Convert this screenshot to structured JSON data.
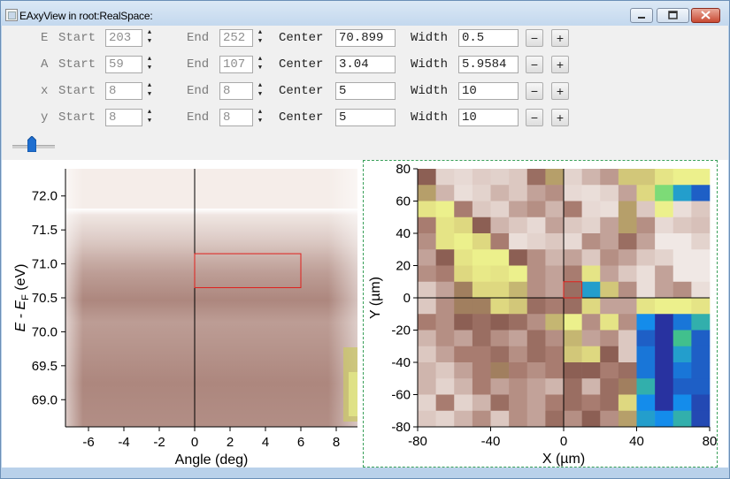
{
  "window": {
    "title": "EAxyView in root:RealSpace:",
    "buttons": [
      "minimize",
      "maximize",
      "close"
    ]
  },
  "controls": {
    "rows": [
      {
        "axis": "E",
        "start_label": "Start",
        "start": "203",
        "end_label": "End",
        "end": "252",
        "center_label": "Center",
        "center": "70.899",
        "width_label": "Width",
        "width": "0.5",
        "minus": "−",
        "plus": "+"
      },
      {
        "axis": "A",
        "start_label": "Start",
        "start": "59",
        "end_label": "End",
        "end": "107",
        "center_label": "Center",
        "center": "3.04",
        "width_label": "Width",
        "width": "5.9584",
        "minus": "−",
        "plus": "+"
      },
      {
        "axis": "x",
        "start_label": "Start",
        "start": "8",
        "end_label": "End",
        "end": "8",
        "center_label": "Center",
        "center": "5",
        "width_label": "Width",
        "width": "10",
        "minus": "−",
        "plus": "+"
      },
      {
        "axis": "y",
        "start_label": "Start",
        "start": "8",
        "end_label": "End",
        "end": "8",
        "center_label": "Center",
        "center": "5",
        "width_label": "Width",
        "width": "10",
        "minus": "−",
        "plus": "+"
      }
    ],
    "slider_value": 0.42
  },
  "colors": {
    "title_bar": "#c8dcf0",
    "plot_area_left": "#7a4a3d",
    "selection_box": "#e0201c",
    "crosshair": "#000000",
    "plot_frame": "#3aa05a"
  },
  "chart_data": [
    {
      "type": "heatmap",
      "xlabel": "Angle (deg)",
      "ylabel": "E - E_F (eV)",
      "ylabel_main": "E - E",
      "ylabel_sub": "F",
      "ylabel_unit": " (eV)",
      "xlim": [
        -7.3,
        9.2
      ],
      "ylim": [
        68.6,
        72.4
      ],
      "xticks": [
        -6,
        -4,
        -2,
        0,
        2,
        4,
        6,
        8
      ],
      "xtick_labels": [
        "-6",
        "-4",
        "-2",
        "0",
        "2",
        "4",
        "6",
        "8"
      ],
      "yticks": [
        69.0,
        69.5,
        70.0,
        70.5,
        71.0,
        71.5,
        72.0
      ],
      "ytick_labels": [
        "69.0",
        "69.5",
        "70.0",
        "70.5",
        "71.0",
        "71.5",
        "72.0"
      ],
      "crosshair": {
        "x": 0
      },
      "selection": {
        "x": [
          0,
          6
        ],
        "y": [
          70.65,
          71.15
        ]
      },
      "colormap": "brown-white"
    },
    {
      "type": "heatmap",
      "xlabel": "X (µm)",
      "ylabel": "Y (µm)",
      "xlim": [
        -80,
        80
      ],
      "ylim": [
        -80,
        80
      ],
      "xticks": [
        -80,
        -40,
        0,
        40,
        80
      ],
      "xtick_labels": [
        "-80",
        "-40",
        "0",
        "40",
        "80"
      ],
      "yticks": [
        -80,
        -60,
        -40,
        -20,
        0,
        20,
        40,
        60,
        80
      ],
      "ytick_labels": [
        "-80",
        "-60",
        "-40",
        "-20",
        "0",
        "20",
        "40",
        "60",
        "80"
      ],
      "crosshair": {
        "x": 0,
        "y": 0
      },
      "selection": {
        "x": [
          0,
          10
        ],
        "y": [
          0,
          10
        ]
      },
      "grid_size": 16,
      "values": [
        [
          0.5,
          0.15,
          0.12,
          0.18,
          0.16,
          0.2,
          0.45,
          0.6,
          0.15,
          0.25,
          0.32,
          0.7,
          0.7,
          0.8,
          0.85,
          0.85
        ],
        [
          0.6,
          0.25,
          0.1,
          0.15,
          0.25,
          0.2,
          0.3,
          0.35,
          0.12,
          0.1,
          0.15,
          0.3,
          0.75,
          0.9,
          0.95,
          0.98
        ],
        [
          0.8,
          0.85,
          0.4,
          0.2,
          0.15,
          0.3,
          0.35,
          0.25,
          0.4,
          0.12,
          0.1,
          0.6,
          0.2,
          0.85,
          0.1,
          0.2
        ],
        [
          0.4,
          0.8,
          0.75,
          0.5,
          0.25,
          0.2,
          0.12,
          0.3,
          0.2,
          0.15,
          0.3,
          0.6,
          0.35,
          0.12,
          0.2,
          0.22
        ],
        [
          0.35,
          0.8,
          0.85,
          0.75,
          0.4,
          0.1,
          0.15,
          0.2,
          0.12,
          0.35,
          0.3,
          0.45,
          0.3,
          0.05,
          0.05,
          0.15
        ],
        [
          0.3,
          0.5,
          0.8,
          0.85,
          0.85,
          0.5,
          0.35,
          0.25,
          0.3,
          0.2,
          0.35,
          0.3,
          0.2,
          0.15,
          0.05,
          0.05
        ],
        [
          0.35,
          0.4,
          0.75,
          0.82,
          0.8,
          0.85,
          0.35,
          0.3,
          0.4,
          0.8,
          0.3,
          0.2,
          0.1,
          0.3,
          0.05,
          0.05
        ],
        [
          0.2,
          0.3,
          0.55,
          0.75,
          0.75,
          0.65,
          0.35,
          0.3,
          0.45,
          0.95,
          0.7,
          0.35,
          0.1,
          0.3,
          0.35,
          0.1
        ],
        [
          0.2,
          0.35,
          0.55,
          0.55,
          0.75,
          0.7,
          0.45,
          0.4,
          0.45,
          0.75,
          0.3,
          0.3,
          0.8,
          0.85,
          0.85,
          0.8
        ],
        [
          0.4,
          0.35,
          0.5,
          0.45,
          0.5,
          0.45,
          0.35,
          0.65,
          0.85,
          0.35,
          0.8,
          0.35,
          0.96,
          1.0,
          0.97,
          0.94
        ],
        [
          0.25,
          0.35,
          0.3,
          0.45,
          0.35,
          0.3,
          0.45,
          0.35,
          0.65,
          0.3,
          0.35,
          0.2,
          0.98,
          1.0,
          0.93,
          0.98
        ],
        [
          0.2,
          0.3,
          0.4,
          0.4,
          0.45,
          0.35,
          0.45,
          0.4,
          0.7,
          0.75,
          0.5,
          0.2,
          0.97,
          1.0,
          0.95,
          0.98
        ],
        [
          0.25,
          0.2,
          0.3,
          0.4,
          0.55,
          0.4,
          0.35,
          0.4,
          0.5,
          0.5,
          0.4,
          0.45,
          0.97,
          1.0,
          0.97,
          0.98
        ],
        [
          0.25,
          0.15,
          0.25,
          0.4,
          0.3,
          0.35,
          0.3,
          0.25,
          0.45,
          0.25,
          0.45,
          0.55,
          0.94,
          1.0,
          0.98,
          0.98
        ],
        [
          0.15,
          0.4,
          0.15,
          0.25,
          0.45,
          0.35,
          0.3,
          0.4,
          0.45,
          0.4,
          0.45,
          0.75,
          0.96,
          1.0,
          0.96,
          0.99
        ],
        [
          0.2,
          0.15,
          0.25,
          0.35,
          0.2,
          0.35,
          0.3,
          0.45,
          0.35,
          0.5,
          0.35,
          0.6,
          0.95,
          0.96,
          0.94,
          0.99
        ]
      ]
    }
  ]
}
